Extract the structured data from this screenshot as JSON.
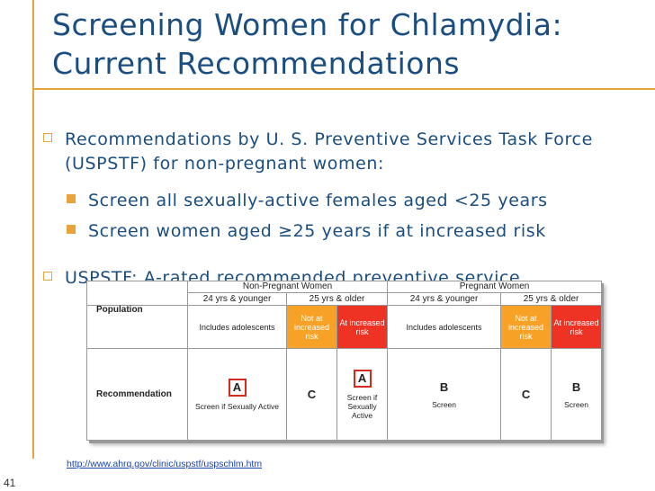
{
  "slide": {
    "title_line1": "Screening Women for Chlamydia:",
    "title_line2": "Current Recommendations",
    "number": "41",
    "bullets": {
      "b1": "Recommendations by U. S. Preventive Services Task Force (USPSTF) for non-pregnant women:",
      "sub1": "Screen all sexually-active females aged <25 years",
      "sub2": "Screen women aged ≥25 years if at increased risk",
      "b2": "USPSTF: A-rated recommended preventive service"
    },
    "url": "http://www.ahrq.gov/clinic/uspstf/uspschlm.htm"
  },
  "table": {
    "group_nonpregnant": "Non-Pregnant Women",
    "group_pregnant": "Pregnant Women",
    "age_cols": [
      "24 yrs & younger",
      "25 yrs & older",
      "24 yrs & younger",
      "25 yrs & older"
    ],
    "row_population": "Population",
    "row_recommendation": "Recommendation",
    "pop": {
      "np_young": "Includes adolescents",
      "np_old_not": "Not at increased risk",
      "np_old_at": "At increased risk",
      "p_young": "Includes adolescents",
      "p_old_not": "Not at increased risk",
      "p_old_at": "At increased risk"
    },
    "rec": {
      "np_young_grade": "A",
      "np_young_text": "Screen if Sexually Active",
      "np_old_not_grade": "C",
      "np_old_at_grade": "A",
      "np_old_at_text": "Screen if Sexually Active",
      "p_young_grade": "B",
      "p_young_text": "Screen",
      "p_old_not_grade": "C",
      "p_old_at_grade": "B",
      "p_old_at_text": "Screen"
    },
    "colors": {
      "orange": "#f7a227",
      "red": "#ee3224",
      "grade_box": "#d42a20"
    }
  }
}
